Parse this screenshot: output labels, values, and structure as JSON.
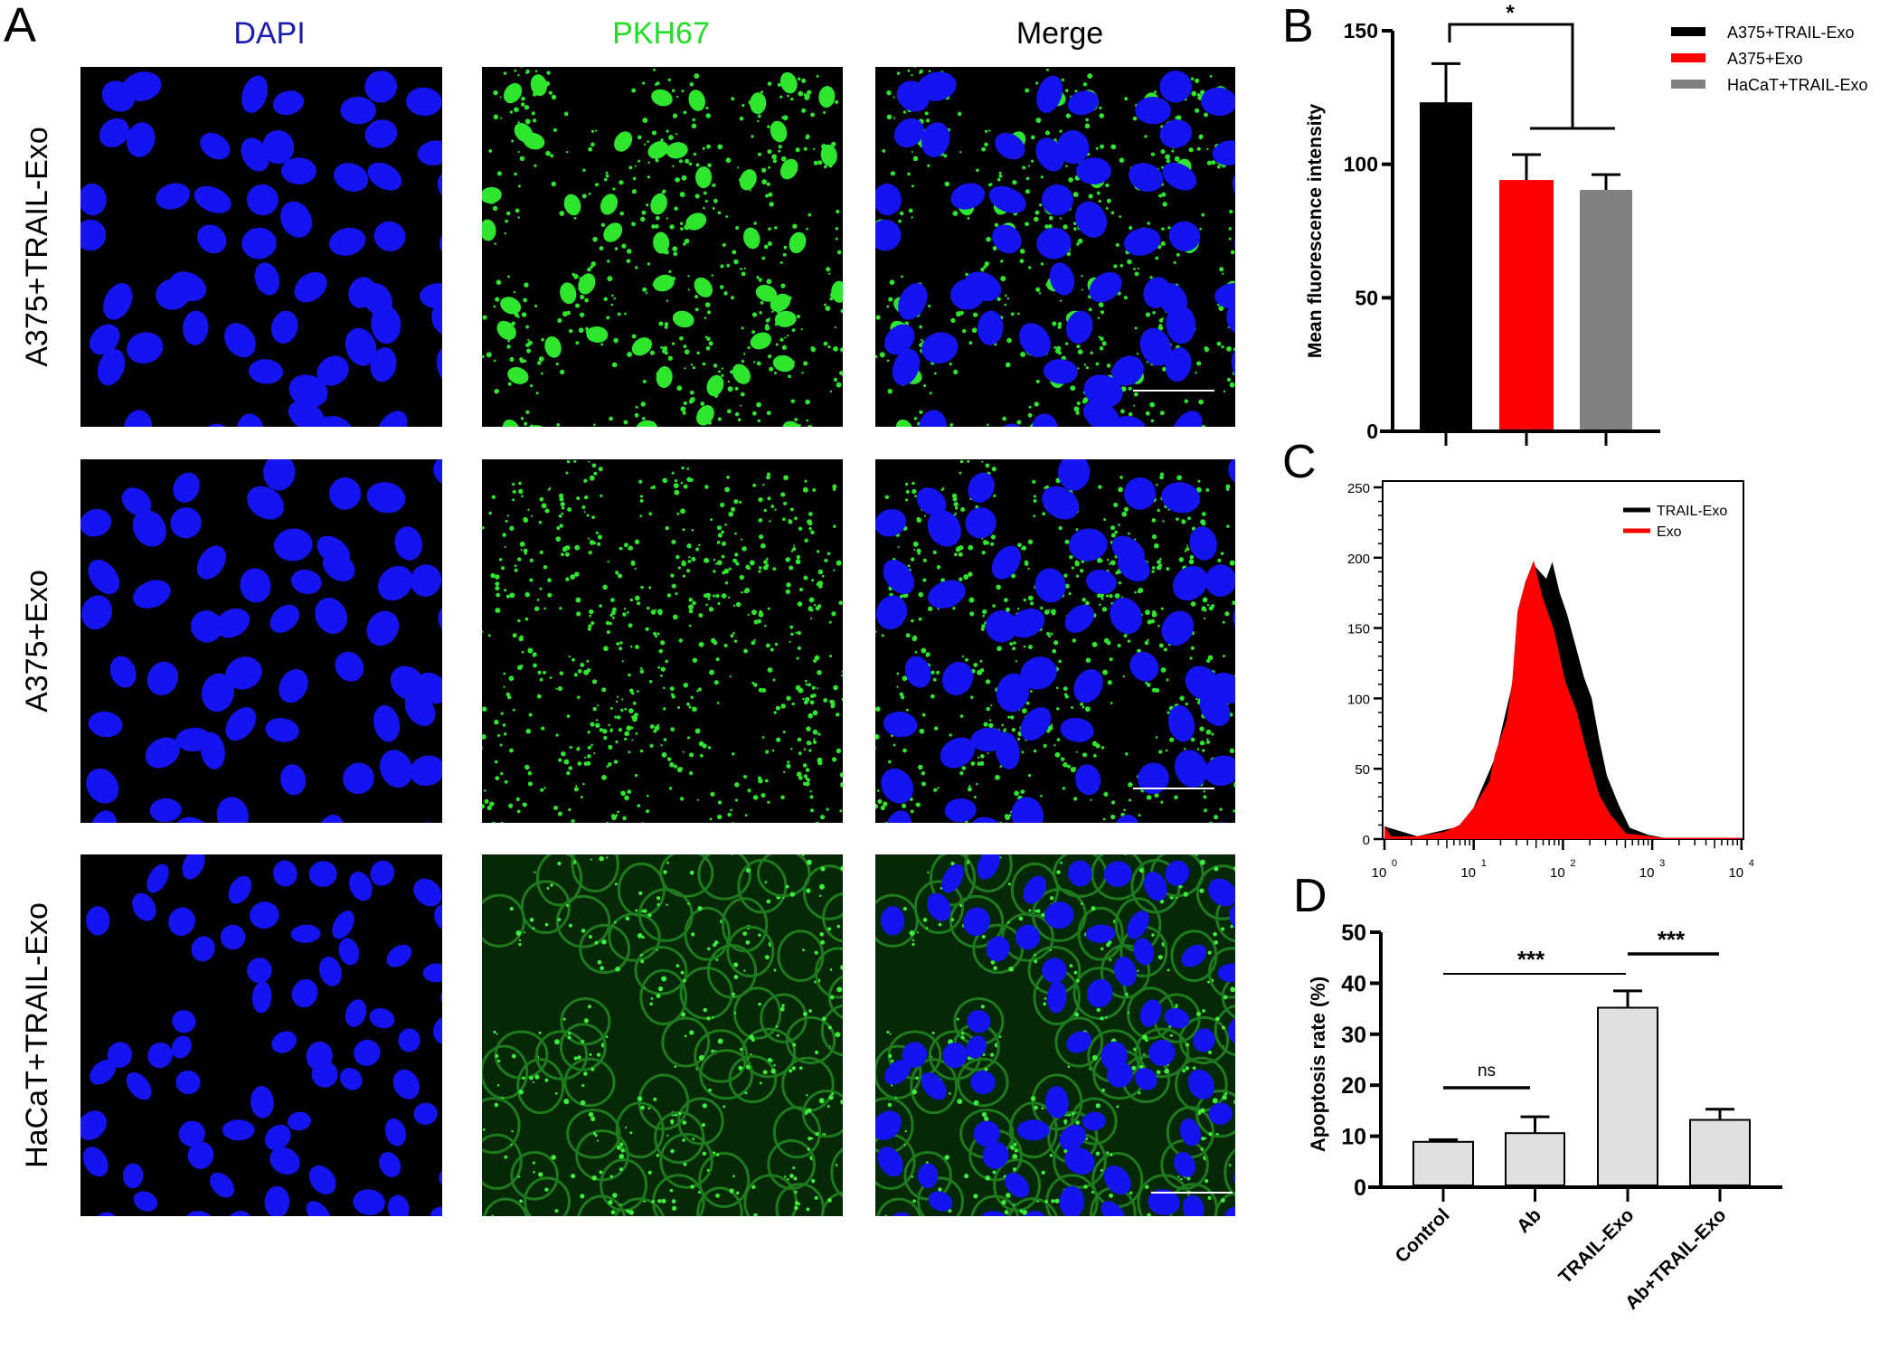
{
  "panels": {
    "a": {
      "letter": "A",
      "column_headers": [
        "DAPI",
        "PKH67",
        "Merge"
      ],
      "row_labels": [
        "A375+TRAIL-Exo",
        "A375+Exo",
        "HaCaT+TRAIL-Exo"
      ],
      "colors": {
        "dapi": "#1a1ab4",
        "pkh67": "#22dd22",
        "merge": "#000000"
      }
    },
    "b": {
      "letter": "B"
    },
    "c": {
      "letter": "C"
    },
    "d": {
      "letter": "D"
    }
  },
  "chart_data": [
    {
      "panel": "B",
      "type": "bar",
      "categories": [
        "A375+TRAIL-Exo",
        "A375+Exo",
        "HaCaT+TRAIL-Exo"
      ],
      "values": [
        123.2,
        94.1,
        90.4
      ],
      "error_upper": [
        137.7,
        103.6,
        96.1
      ],
      "colors": [
        "#000000",
        "#ff0000",
        "#808080"
      ],
      "ylabel": "Mean fluorescence intensity",
      "ylim": [
        0,
        150
      ],
      "yticks": [
        0,
        50,
        100,
        150
      ],
      "legend": [
        "A375+TRAIL-Exo",
        "A375+Exo",
        "HaCaT+TRAIL-Exo"
      ],
      "legend_position": "top-right",
      "significance": [
        {
          "groups": [
            "A375+TRAIL-Exo",
            "A375+Exo + HaCaT+TRAIL-Exo"
          ],
          "label": "*"
        }
      ]
    },
    {
      "panel": "C",
      "type": "area",
      "x_scale": "log",
      "xlim": [
        1,
        10000
      ],
      "xtick_labels": [
        "10",
        "10",
        "10",
        "10",
        "10"
      ],
      "xtick_exponents": [
        "0",
        "1",
        "2",
        "3",
        "4"
      ],
      "xticks": [
        1,
        10,
        100,
        1000,
        10000
      ],
      "ylim": [
        0,
        250
      ],
      "yticks": [
        0,
        50,
        100,
        150,
        200,
        250
      ],
      "legend_position": "top-right",
      "series": [
        {
          "name": "TRAIL-Exo",
          "color": "#000000",
          "x": [
            1.0,
            2.34,
            6.9,
            9.9,
            17.4,
            27,
            38,
            47,
            65,
            76,
            92,
            111,
            135,
            172,
            210,
            256,
            311,
            417,
            560,
            910,
            1340,
            10000
          ],
          "y": [
            9,
            2,
            9,
            22,
            58,
            110,
            180,
            195,
            185,
            197,
            175,
            160,
            140,
            115,
            100,
            70,
            45,
            25,
            8,
            3,
            1,
            1
          ]
        },
        {
          "name": "Exo",
          "color": "#ff0000",
          "x": [
            1.0,
            1.18,
            2.34,
            4.6,
            6.9,
            9.9,
            15,
            17.4,
            23.3,
            27,
            31,
            38,
            47,
            59,
            79,
            106,
            142,
            190,
            256,
            343,
            508,
            1340,
            10000
          ],
          "y": [
            9,
            2,
            2,
            5,
            10,
            22,
            41,
            61,
            84,
            112,
            162,
            183,
            198,
            172,
            149,
            112,
            91,
            59,
            31,
            17,
            4,
            1,
            1
          ]
        }
      ]
    },
    {
      "panel": "D",
      "type": "bar",
      "categories": [
        "Control",
        "Ab",
        "TRAIL-Exo",
        "Ab+TRAIL-Exo"
      ],
      "values": [
        8.9,
        10.6,
        35.2,
        13.2
      ],
      "error_upper": [
        9.3,
        13.8,
        38.5,
        15.3
      ],
      "bar_color": "#e0e0e0",
      "ylabel": "Apoptosis rate (%)",
      "ylim": [
        0,
        50
      ],
      "yticks": [
        0,
        10,
        20,
        30,
        40,
        50
      ],
      "significance": [
        {
          "groups": [
            "Control",
            "Ab"
          ],
          "label": "ns"
        },
        {
          "groups": [
            "Control",
            "TRAIL-Exo"
          ],
          "label": "***"
        },
        {
          "groups": [
            "TRAIL-Exo",
            "Ab+TRAIL-Exo"
          ],
          "label": "***"
        }
      ]
    }
  ]
}
